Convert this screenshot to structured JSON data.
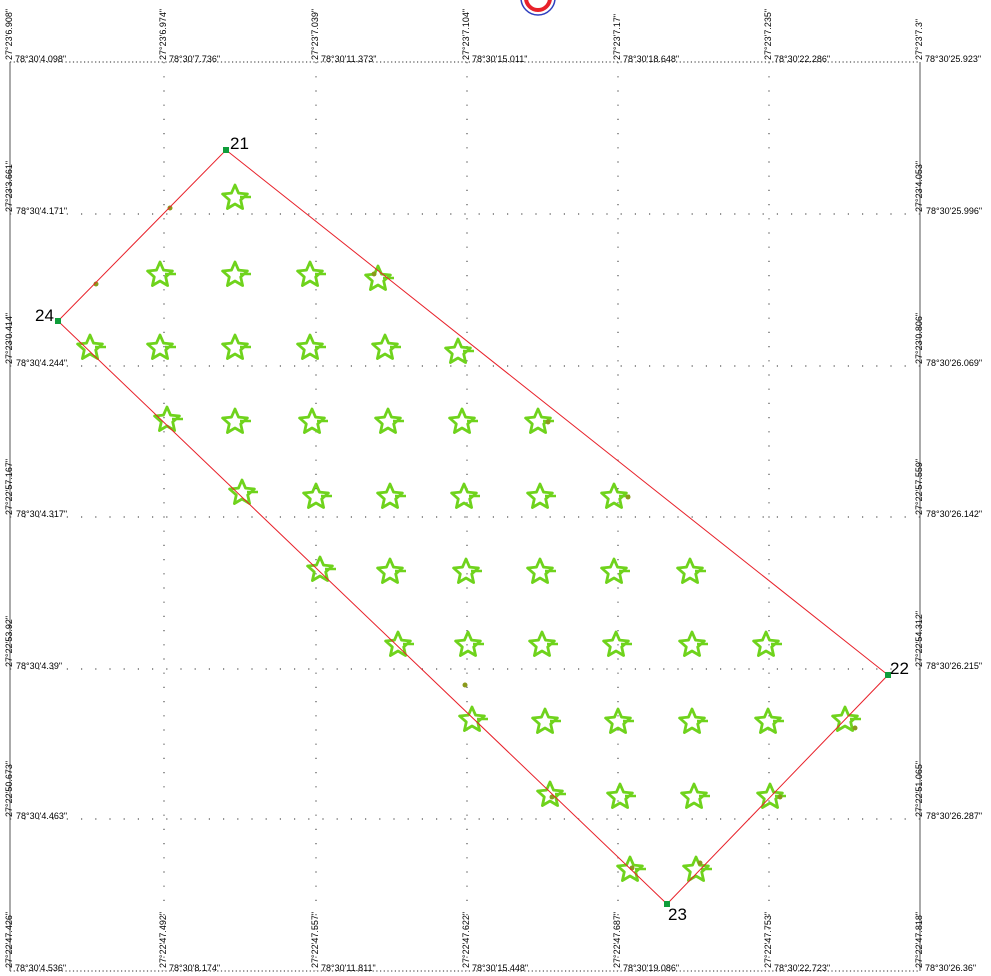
{
  "map": {
    "north_arrow": "north-arrow-icon",
    "boundary_color": "#e8212a",
    "tree_color": "#6fd31c",
    "point_color": "#0f9d3a",
    "grid_color": "#555555",
    "top_labels": [
      "27°23'6.908\"",
      "27°23'6.974\"",
      "27°23'7.039\"",
      "27°23'7.104\"",
      "27°23'7.17\"",
      "27°23'7.235\"",
      "27°23'7.3\""
    ],
    "bottom_vertical_labels": [
      "27°22'47.426\"",
      "27°22'47.492\"",
      "27°22'47.557\"",
      "27°22'47.622\"",
      "27°22'47.687\"",
      "27°22'47.753\"",
      "27°22'47.818\""
    ],
    "left_vertical_labels": [
      "27°23'3.661\"",
      "27°23'0.414\"",
      "27°22'57.167\"",
      "27°22'53.92\"",
      "27°22'50.673\""
    ],
    "right_vertical_labels": [
      "27°23'4.053\"",
      "27°23'0.806\"",
      "27°22'57.559\"",
      "27°22'54.312\"",
      "27°22'51.065\""
    ],
    "top_row_labels": [
      "78°30'4.098\"",
      "78°30'7.736\"",
      "78°30'11.373\"",
      "78°30'15.011\"",
      "78°30'18.648\"",
      "78°30'22.286\"",
      "78°30'25.923\""
    ],
    "bottom_row_labels": [
      "78°30'4.536\"",
      "78°30'8.174\"",
      "78°30'11.811\"",
      "78°30'15.448\"",
      "78°30'19.086\"",
      "78°30'22.723\"",
      "78°30'26.36\""
    ],
    "left_row_labels": [
      "78°30'4.171\"",
      "78°30'4.244\"",
      "78°30'4.317\"",
      "78°30'4.39\"",
      "78°30'4.463\""
    ],
    "right_row_labels": [
      "78°30'25.996\"",
      "78°30'26.069\"",
      "78°30'26.142\"",
      "78°30'26.215\"",
      "78°30'26.287\""
    ],
    "points": [
      {
        "label": "21"
      },
      {
        "label": "22"
      },
      {
        "label": "23"
      },
      {
        "label": "24"
      }
    ]
  }
}
